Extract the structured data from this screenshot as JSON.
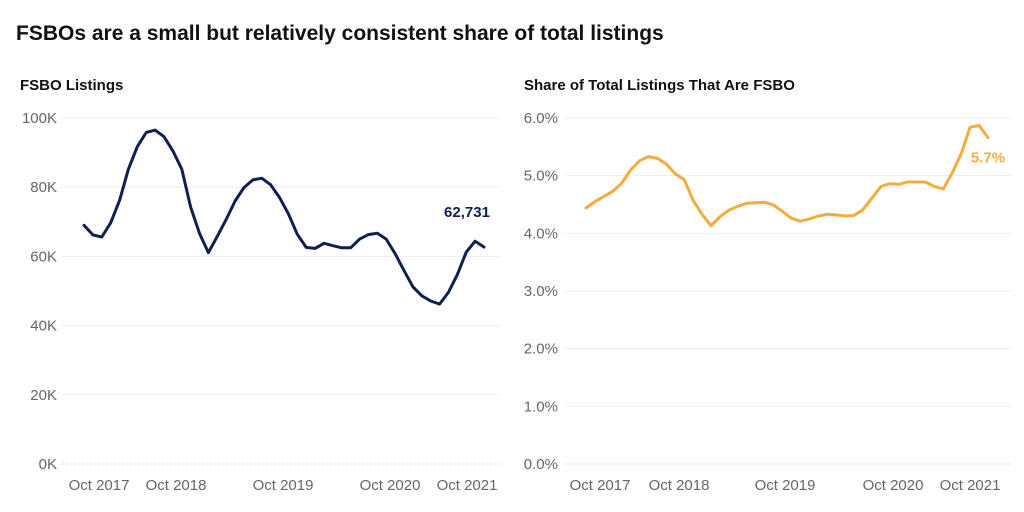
{
  "title": "FSBOs are a small but relatively consistent share of total listings",
  "colors": {
    "left_line": "#0e1f52",
    "right_line": "#f5ac3f",
    "grid": "#eeeeee",
    "axis": "#d8d8d8"
  },
  "chart_data": [
    {
      "type": "line",
      "title": "FSBO Listings",
      "x_tick_labels": [
        "Oct 2017",
        "Oct 2018",
        "Oct 2019",
        "Oct 2020",
        "Oct 2021"
      ],
      "y_tick_labels": [
        "0K",
        "20K",
        "40K",
        "60K",
        "80K",
        "100K"
      ],
      "ylim": [
        0,
        100000
      ],
      "grid": true,
      "end_label": "62,731",
      "series": [
        {
          "values": [
            69000,
            66200,
            65600,
            69700,
            76200,
            85200,
            91700,
            95800,
            96500,
            94600,
            90500,
            85200,
            74200,
            66600,
            61100,
            65800,
            70700,
            76000,
            79900,
            82100,
            82600,
            80700,
            77000,
            72300,
            66400,
            62600,
            62300,
            63800,
            63100,
            62500,
            62500,
            65000,
            66300,
            66700,
            65000,
            60800,
            55900,
            51200,
            48600,
            47100,
            46200,
            49600,
            54700,
            61200,
            64400,
            62731
          ]
        }
      ]
    },
    {
      "type": "line",
      "title": "Share of Total Listings That Are FSBO",
      "x_tick_labels": [
        "Oct 2017",
        "Oct 2018",
        "Oct 2019",
        "Oct 2020",
        "Oct 2021"
      ],
      "y_tick_labels": [
        "0.0%",
        "1.0%",
        "2.0%",
        "3.0%",
        "4.0%",
        "5.0%",
        "6.0%"
      ],
      "ylim": [
        0,
        6
      ],
      "grid": true,
      "end_label": "5.7%",
      "series": [
        {
          "values": [
            4.44,
            4.55,
            4.64,
            4.73,
            4.87,
            5.1,
            5.26,
            5.33,
            5.3,
            5.2,
            5.03,
            4.93,
            4.57,
            4.33,
            4.13,
            4.29,
            4.4,
            4.47,
            4.52,
            4.53,
            4.54,
            4.49,
            4.38,
            4.26,
            4.21,
            4.25,
            4.3,
            4.33,
            4.32,
            4.3,
            4.31,
            4.41,
            4.61,
            4.81,
            4.86,
            4.85,
            4.89,
            4.89,
            4.89,
            4.81,
            4.77,
            5.05,
            5.38,
            5.84,
            5.87,
            5.66
          ]
        }
      ]
    }
  ]
}
